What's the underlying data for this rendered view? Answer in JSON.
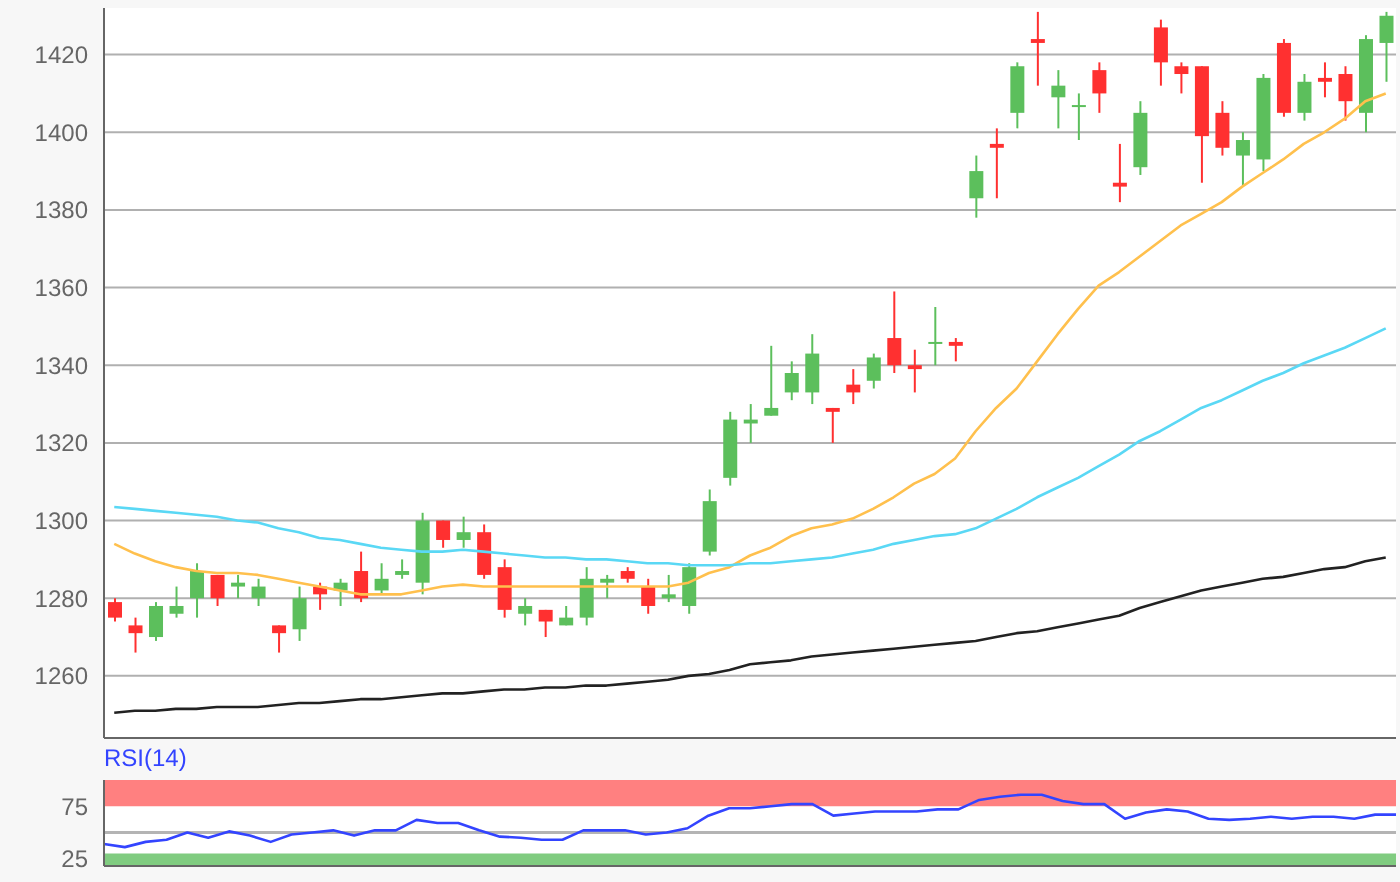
{
  "chart_data": [
    {
      "type": "candlestick",
      "categories": [
        null,
        null,
        null,
        null,
        null,
        null,
        null,
        null,
        null,
        null,
        null,
        null,
        null,
        null,
        null,
        null,
        null,
        null,
        null,
        null,
        null,
        null,
        null,
        null,
        null,
        null,
        null,
        null,
        null,
        null,
        null,
        null,
        null,
        null,
        null,
        null,
        null,
        null,
        null,
        null,
        null,
        null,
        null,
        null,
        null,
        null,
        null,
        null,
        null,
        null,
        null,
        null,
        null,
        null,
        null,
        null,
        null,
        null,
        null,
        null,
        null,
        null,
        null
      ],
      "ohlc": [
        [
          1279,
          1280,
          1274,
          1275
        ],
        [
          1273,
          1275,
          1266,
          1271
        ],
        [
          1270,
          1279,
          1269,
          1278
        ],
        [
          1276,
          1283,
          1275,
          1278
        ],
        [
          1280,
          1289,
          1275,
          1287
        ],
        [
          1286,
          1286,
          1278,
          1280
        ],
        [
          1283,
          1286,
          1280,
          1284
        ],
        [
          1280,
          1285,
          1278,
          1283
        ],
        [
          1273,
          1273,
          1266,
          1271
        ],
        [
          1272,
          1283,
          1269,
          1280
        ],
        [
          1283,
          1284,
          1277,
          1281
        ],
        [
          1282,
          1285,
          1278,
          1284
        ],
        [
          1287,
          1292,
          1279,
          1280
        ],
        [
          1282,
          1289,
          1281,
          1285
        ],
        [
          1286,
          1290,
          1285,
          1287
        ],
        [
          1284,
          1302,
          1281,
          1300
        ],
        [
          1300,
          1300,
          1293,
          1295
        ],
        [
          1295,
          1301,
          1293,
          1297
        ],
        [
          1297,
          1299,
          1285,
          1286
        ],
        [
          1288,
          1290,
          1275,
          1277
        ],
        [
          1276,
          1280,
          1273,
          1278
        ],
        [
          1277,
          1277,
          1270,
          1274
        ],
        [
          1273,
          1278,
          1273,
          1275
        ],
        [
          1275,
          1288,
          1273,
          1285
        ],
        [
          1284,
          1286,
          1280,
          1285
        ],
        [
          1287,
          1288,
          1284,
          1285
        ],
        [
          1283,
          1285,
          1276,
          1278
        ],
        [
          1280,
          1286,
          1279,
          1281
        ],
        [
          1278,
          1289,
          1276,
          1288
        ],
        [
          1292,
          1308,
          1291,
          1305
        ],
        [
          1311,
          1328,
          1309,
          1326
        ],
        [
          1325,
          1330,
          1320,
          1326
        ],
        [
          1327,
          1345,
          1327,
          1329
        ],
        [
          1333,
          1341,
          1331,
          1338
        ],
        [
          1333,
          1348,
          1330,
          1343
        ],
        [
          1329,
          1329,
          1320,
          1328
        ],
        [
          1335,
          1339,
          1330,
          1333
        ],
        [
          1336,
          1343,
          1334,
          1342
        ],
        [
          1347,
          1359,
          1338,
          1340
        ],
        [
          1340,
          1344,
          1333,
          1339
        ],
        [
          1346,
          1355,
          1340,
          1346
        ],
        [
          1346,
          1347,
          1341,
          1345
        ],
        [
          1383,
          1394,
          1378,
          1390
        ],
        [
          1397,
          1401,
          1383,
          1396
        ],
        [
          1405,
          1418,
          1401,
          1417
        ],
        [
          1424,
          1431,
          1412,
          1423
        ],
        [
          1409,
          1416,
          1401,
          1412
        ],
        [
          1407,
          1410,
          1398,
          1407
        ],
        [
          1416,
          1418,
          1405,
          1410
        ],
        [
          1387,
          1397,
          1382,
          1386
        ],
        [
          1391,
          1408,
          1389,
          1405
        ],
        [
          1427,
          1429,
          1412,
          1418
        ],
        [
          1417,
          1418,
          1410,
          1415
        ],
        [
          1417,
          1417,
          1387,
          1399
        ],
        [
          1405,
          1408,
          1394,
          1396
        ],
        [
          1394,
          1400,
          1386,
          1398
        ],
        [
          1393,
          1415,
          1390,
          1414
        ],
        [
          1423,
          1424,
          1404,
          1405
        ],
        [
          1405,
          1415,
          1403,
          1413
        ],
        [
          1414,
          1418,
          1409,
          1413
        ],
        [
          1415,
          1417,
          1403,
          1408
        ],
        [
          1405,
          1425,
          1400,
          1424
        ],
        [
          1423,
          1431,
          1413,
          1430
        ]
      ],
      "colors": [
        "#ff3030",
        "#ff3030",
        "#5cbf5c",
        "#5cbf5c",
        "#5cbf5c",
        "#ff3030",
        "#5cbf5c",
        "#5cbf5c",
        "#ff3030",
        "#5cbf5c",
        "#ff3030",
        "#5cbf5c",
        "#ff3030",
        "#5cbf5c",
        "#5cbf5c",
        "#5cbf5c",
        "#ff3030",
        "#5cbf5c",
        "#ff3030",
        "#ff3030",
        "#5cbf5c",
        "#ff3030",
        "#5cbf5c",
        "#5cbf5c",
        "#5cbf5c",
        "#ff3030",
        "#ff3030",
        "#5cbf5c",
        "#5cbf5c",
        "#5cbf5c",
        "#5cbf5c",
        "#5cbf5c",
        "#5cbf5c",
        "#5cbf5c",
        "#5cbf5c",
        "#ff3030",
        "#ff3030",
        "#5cbf5c",
        "#ff3030",
        "#ff3030",
        "#5cbf5c",
        "#ff3030",
        "#5cbf5c",
        "#ff3030",
        "#5cbf5c",
        "#ff3030",
        "#5cbf5c",
        "#5cbf5c",
        "#ff3030",
        "#ff3030",
        "#5cbf5c",
        "#ff3030",
        "#ff3030",
        "#ff3030",
        "#ff3030",
        "#5cbf5c",
        "#5cbf5c",
        "#ff3030",
        "#5cbf5c",
        "#ff3030",
        "#ff3030",
        "#5cbf5c",
        "#5cbf5c"
      ],
      "series": [
        {
          "type": "line",
          "color": "#ffc04d",
          "values": [
            1294,
            1291.5,
            1289.5,
            1288,
            1287,
            1286.5,
            1286.5,
            1286,
            1285,
            1284,
            1283,
            1282,
            1281,
            1281,
            1281,
            1282,
            1283,
            1283.5,
            1283,
            1283,
            1283,
            1283,
            1283,
            1283,
            1283,
            1283,
            1283,
            1283,
            1284,
            1286.5,
            1288,
            1291,
            1293,
            1296,
            1298,
            1299,
            1300.5,
            1303,
            1306,
            1309.5,
            1312,
            1316,
            1323,
            1329,
            1334,
            1341,
            1348,
            1354.5,
            1360.5,
            1364,
            1368,
            1372,
            1376,
            1379,
            1382,
            1386,
            1389.5,
            1393,
            1397,
            1400,
            1403.5,
            1408,
            1410
          ]
        },
        {
          "type": "line",
          "color": "#5ad8f5",
          "values": [
            1303.5,
            1303,
            1302.5,
            1302,
            1301.5,
            1301,
            1300,
            1299.5,
            1298,
            1297,
            1295.5,
            1295,
            1294,
            1293,
            1292.5,
            1292,
            1292,
            1292.5,
            1292,
            1291.5,
            1291,
            1290.5,
            1290.5,
            1290,
            1290,
            1289.5,
            1289,
            1289,
            1288.5,
            1288.5,
            1288.5,
            1289,
            1289,
            1289.5,
            1290,
            1290.5,
            1291.5,
            1292.5,
            1294,
            1295,
            1296,
            1296.5,
            1298,
            1300.5,
            1303,
            1306,
            1308.5,
            1311,
            1314,
            1317,
            1320.5,
            1323,
            1326,
            1329,
            1331,
            1333.5,
            1336,
            1338,
            1340.5,
            1342.5,
            1344.5,
            1347,
            1349.5
          ]
        },
        {
          "type": "line",
          "color": "#222222",
          "values": [
            1250.5,
            1251,
            1251,
            1251.5,
            1251.5,
            1252,
            1252,
            1252,
            1252.5,
            1253,
            1253,
            1253.5,
            1254,
            1254,
            1254.5,
            1255,
            1255.5,
            1255.5,
            1256,
            1256.5,
            1256.5,
            1257,
            1257,
            1257.5,
            1257.5,
            1258,
            1258.5,
            1259,
            1260,
            1260.5,
            1261.5,
            1263,
            1263.5,
            1264,
            1265,
            1265.5,
            1266,
            1266.5,
            1267,
            1267.5,
            1268,
            1268.5,
            1269,
            1270,
            1271,
            1271.5,
            1272.5,
            1273.5,
            1274.5,
            1275.5,
            1277.5,
            1279,
            1280.5,
            1282,
            1283,
            1284,
            1285,
            1285.5,
            1286.5,
            1287.5,
            1288,
            1289.5,
            1290.5
          ]
        }
      ],
      "ylim": [
        1244,
        1432
      ],
      "yticks": [
        1260,
        1280,
        1300,
        1320,
        1340,
        1360,
        1380,
        1400,
        1420
      ],
      "grid": "y",
      "tick_labels": "y"
    },
    {
      "type": "line",
      "title": "RSI(14)",
      "categories": [
        null,
        null,
        null,
        null,
        null,
        null,
        null,
        null,
        null,
        null,
        null,
        null,
        null,
        null,
        null,
        null,
        null,
        null,
        null,
        null,
        null,
        null,
        null,
        null,
        null,
        null,
        null,
        null,
        null,
        null,
        null,
        null,
        null,
        null,
        null,
        null,
        null,
        null,
        null,
        null,
        null,
        null,
        null,
        null,
        null,
        null,
        null,
        null,
        null,
        null,
        null,
        null,
        null,
        null,
        null,
        null,
        null,
        null,
        null,
        null,
        null,
        null,
        null
      ],
      "series": [
        {
          "color": "#3344ff",
          "values": [
            39,
            36,
            41,
            43,
            50,
            45,
            51,
            47,
            41,
            48,
            50,
            52,
            47,
            52,
            52,
            62,
            59,
            59,
            52,
            46,
            45,
            43,
            43,
            52,
            52,
            52,
            48,
            50,
            54,
            66,
            73,
            73,
            75,
            77,
            77,
            66,
            68,
            70,
            70,
            70,
            72,
            72,
            81,
            84,
            86,
            86,
            80,
            77,
            77,
            63,
            69,
            72,
            70,
            63,
            62,
            63,
            65,
            63,
            65,
            65,
            63,
            67,
            67
          ]
        }
      ],
      "ylim": [
        18,
        100
      ],
      "yticks": [
        25,
        75
      ],
      "bands": [
        {
          "axis": "y",
          "from": 75,
          "to": 100,
          "color": "#ff8080"
        },
        {
          "axis": "y",
          "from": 18,
          "to": 30,
          "color": "#80cc80"
        }
      ],
      "ref_lines": [
        {
          "axis": "y",
          "value": 50,
          "color": "#b4b4b4"
        }
      ],
      "tick_labels": "y"
    }
  ]
}
